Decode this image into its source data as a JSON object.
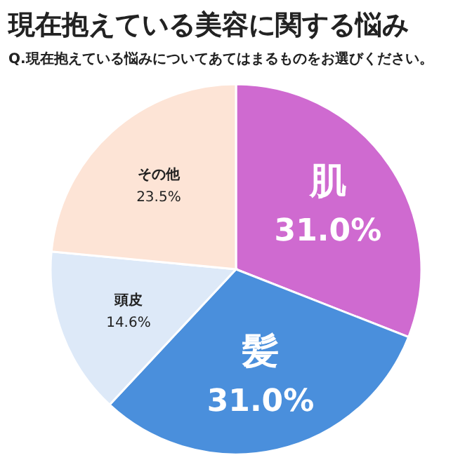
{
  "chart_data": {
    "type": "pie",
    "title": "現在抱えている美容に関する悩み",
    "subtitle": "Q.現在抱えている悩みについてあてはまるものをお選びください。",
    "categories": [
      "肌",
      "髪",
      "頭皮",
      "その他"
    ],
    "values": [
      31.0,
      31.0,
      14.6,
      23.5
    ],
    "value_labels": [
      "31.0%",
      "31.0%",
      "14.6%",
      "23.5%"
    ],
    "colors": [
      "#cf6ad0",
      "#4a8fdc",
      "#dde9f8",
      "#fde4d6"
    ]
  }
}
